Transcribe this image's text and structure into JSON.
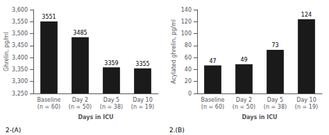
{
  "chart_data": [
    {
      "type": "bar",
      "categories": [
        "Baseline\n(n = 60)",
        "Day 2\n(n = 50)",
        "Day 5\n(n = 38)",
        "Day 10\n(n = 19)"
      ],
      "values": [
        3551,
        3485,
        3359,
        3355
      ],
      "ylabel": "Ghrelin, pg/ml",
      "xlabel": "Days in ICU",
      "annotation": "2-(A)",
      "ylim": [
        3250,
        3600
      ],
      "yticks": [
        3250,
        3300,
        3350,
        3400,
        3450,
        3500,
        3550,
        3600
      ],
      "color": "#1a1a1a",
      "data_labels": true,
      "grid": false
    },
    {
      "type": "bar",
      "categories": [
        "Baseline\n(n = 60)",
        "Day 2\n(n = 50)",
        "Day 5\n(n = 38)",
        "Day 10\n(n = 19)"
      ],
      "values": [
        47,
        49,
        73,
        124
      ],
      "ylabel": "Acylated ghrelin, pg/ml",
      "xlabel": "Days in ICU",
      "annotation": "2.(B)",
      "ylim": [
        0,
        140
      ],
      "yticks": [
        0,
        20,
        40,
        60,
        80,
        100,
        120,
        140
      ],
      "color": "#1a1a1a",
      "data_labels": true,
      "grid": false
    }
  ]
}
